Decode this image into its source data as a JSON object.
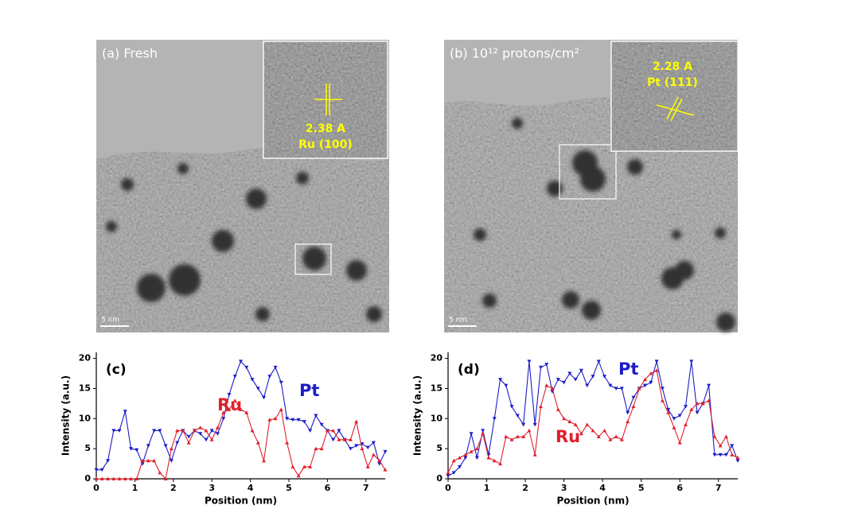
{
  "images": [
    {
      "label": "(a) Fresh",
      "inset_lines": [
        "2.38 A",
        "Ru (100)"
      ],
      "scale_bar": "5 nm"
    },
    {
      "label": "(b) 10¹² protons/cm²",
      "inset_lines": [
        "2.28 A",
        "Pt (111)"
      ],
      "scale_bar": "5 nm"
    }
  ],
  "chart_data": [
    {
      "type": "line",
      "panel_label": "(c)",
      "x_label": "Position (nm)",
      "y_label": "Intensity (a.u.)",
      "x": [
        0,
        0.15,
        0.3,
        0.45,
        0.6,
        0.75,
        0.9,
        1.05,
        1.2,
        1.35,
        1.5,
        1.65,
        1.8,
        1.95,
        2.1,
        2.25,
        2.4,
        2.55,
        2.7,
        2.85,
        3.0,
        3.15,
        3.3,
        3.45,
        3.6,
        3.75,
        3.9,
        4.05,
        4.2,
        4.35,
        4.5,
        4.65,
        4.8,
        4.95,
        5.1,
        5.25,
        5.4,
        5.55,
        5.7,
        5.85,
        6.0,
        6.15,
        6.3,
        6.45,
        6.6,
        6.75,
        6.9,
        7.05,
        7.2,
        7.35,
        7.5
      ],
      "series": [
        {
          "name": "Pt",
          "color": "#1c1cc8",
          "values": [
            1.5,
            1.5,
            3,
            8,
            8,
            11.2,
            5,
            4.8,
            2.5,
            5.5,
            8,
            8,
            5.5,
            3,
            6,
            8,
            7,
            8,
            7.5,
            6.5,
            8,
            7.5,
            10,
            14,
            17,
            19.5,
            18.5,
            16.5,
            15,
            13.5,
            17,
            18.5,
            16,
            10,
            9.8,
            9.8,
            9.5,
            8,
            10.5,
            9,
            8,
            6.5,
            8,
            6.5,
            5,
            5.5,
            5.8,
            5.2,
            6,
            2.5,
            4.5
          ]
        },
        {
          "name": "Ru",
          "color": "#e0202c",
          "values": [
            0,
            0,
            0,
            0,
            0,
            0,
            0,
            0,
            3,
            3,
            3,
            1,
            0,
            5,
            8,
            8,
            6,
            8,
            8.5,
            8,
            6.5,
            8.5,
            11,
            11.5,
            13,
            11.5,
            11,
            8,
            6,
            3,
            9.8,
            10,
            11.5,
            6,
            2,
            0.5,
            2,
            2,
            5,
            5,
            8,
            8,
            6.5,
            6.5,
            6.5,
            9.5,
            5,
            2,
            4,
            3,
            1.5
          ]
        }
      ],
      "xlim": [
        0,
        7.5
      ],
      "ylim": [
        0,
        21
      ],
      "xticks": [
        0,
        1,
        2,
        3,
        4,
        5,
        6,
        7
      ],
      "yticks": [
        0,
        5,
        10,
        15,
        20
      ]
    },
    {
      "type": "line",
      "panel_label": "(d)",
      "x_label": "Position (nm)",
      "y_label": "Intensity (a.u.)",
      "x": [
        0,
        0.15,
        0.3,
        0.45,
        0.6,
        0.75,
        0.9,
        1.05,
        1.2,
        1.35,
        1.5,
        1.65,
        1.8,
        1.95,
        2.1,
        2.25,
        2.4,
        2.55,
        2.7,
        2.85,
        3.0,
        3.15,
        3.3,
        3.45,
        3.6,
        3.75,
        3.9,
        4.05,
        4.2,
        4.35,
        4.5,
        4.65,
        4.8,
        4.95,
        5.1,
        5.25,
        5.4,
        5.55,
        5.7,
        5.85,
        6.0,
        6.15,
        6.3,
        6.45,
        6.6,
        6.75,
        6.9,
        7.05,
        7.2,
        7.35,
        7.5
      ],
      "series": [
        {
          "name": "Pt",
          "color": "#1c1cc8",
          "values": [
            0.5,
            1,
            2,
            3.5,
            7.5,
            3.5,
            8,
            4,
            10,
            16.5,
            15.5,
            12,
            10.5,
            9,
            19.5,
            9,
            18.5,
            19,
            14.5,
            16.5,
            16,
            17.5,
            16.5,
            18,
            15.5,
            17,
            19.5,
            17,
            15.5,
            15,
            15,
            11,
            13.5,
            15,
            15.5,
            16,
            19.5,
            15,
            11.5,
            10,
            10.5,
            12,
            19.5,
            11,
            12.5,
            15.5,
            4,
            4,
            4,
            5.5,
            3
          ]
        },
        {
          "name": "Ru",
          "color": "#e0202c",
          "values": [
            1,
            3,
            3.5,
            4,
            4.5,
            5,
            7.5,
            3.5,
            3,
            2.5,
            7,
            6.5,
            7,
            7,
            8,
            4,
            12,
            15.5,
            15,
            11.5,
            10,
            9.5,
            9,
            7.5,
            9,
            8,
            7,
            8,
            6.5,
            7,
            6.5,
            9.5,
            12,
            15,
            16.5,
            17.5,
            18,
            13,
            11,
            8.5,
            6,
            9,
            11.5,
            12.5,
            12.5,
            13,
            7,
            5.5,
            7,
            4,
            3.5
          ]
        }
      ],
      "xlim": [
        0,
        7.5
      ],
      "ylim": [
        0,
        21
      ],
      "xticks": [
        0,
        1,
        2,
        3,
        4,
        5,
        6,
        7
      ],
      "yticks": [
        0,
        5,
        10,
        15,
        20
      ]
    }
  ]
}
